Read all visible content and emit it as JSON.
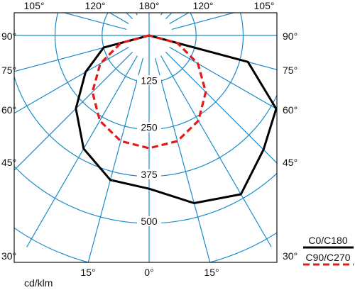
{
  "chart_data": {
    "type": "polar-luminous-intensity",
    "unit_label": "cd/klm",
    "radial_ticks": [
      125,
      250,
      375,
      500
    ],
    "radial_max": 650,
    "top_angle_labels": [
      "105°",
      "120°",
      "180°",
      "120°",
      "105°"
    ],
    "side_angle_labels": [
      "90°",
      "75°",
      "60°",
      "45°",
      "30°"
    ],
    "bottom_angle_labels": [
      "15°",
      "0°",
      "15°"
    ],
    "grid": true,
    "legend_position": "bottom-right",
    "series": [
      {
        "name": "C0/C180",
        "color": "#000000",
        "style": "solid",
        "gamma_deg": [
          -90,
          -75,
          -60,
          -45,
          -30,
          -15,
          0,
          15,
          30,
          45,
          60,
          75,
          90
        ],
        "intensity": [
          0,
          125,
          195,
          275,
          348,
          398,
          408,
          462,
          488,
          430,
          390,
          272,
          0
        ]
      },
      {
        "name": "C90/C270",
        "color": "#e11a1a",
        "style": "dashed",
        "gamma_deg": [
          -90,
          -75,
          -60,
          -45,
          -30,
          -15,
          0,
          15,
          30,
          45,
          60,
          75,
          90
        ],
        "intensity": [
          0,
          78,
          150,
          213,
          262,
          291,
          300,
          291,
          262,
          213,
          150,
          78,
          0
        ]
      }
    ]
  }
}
